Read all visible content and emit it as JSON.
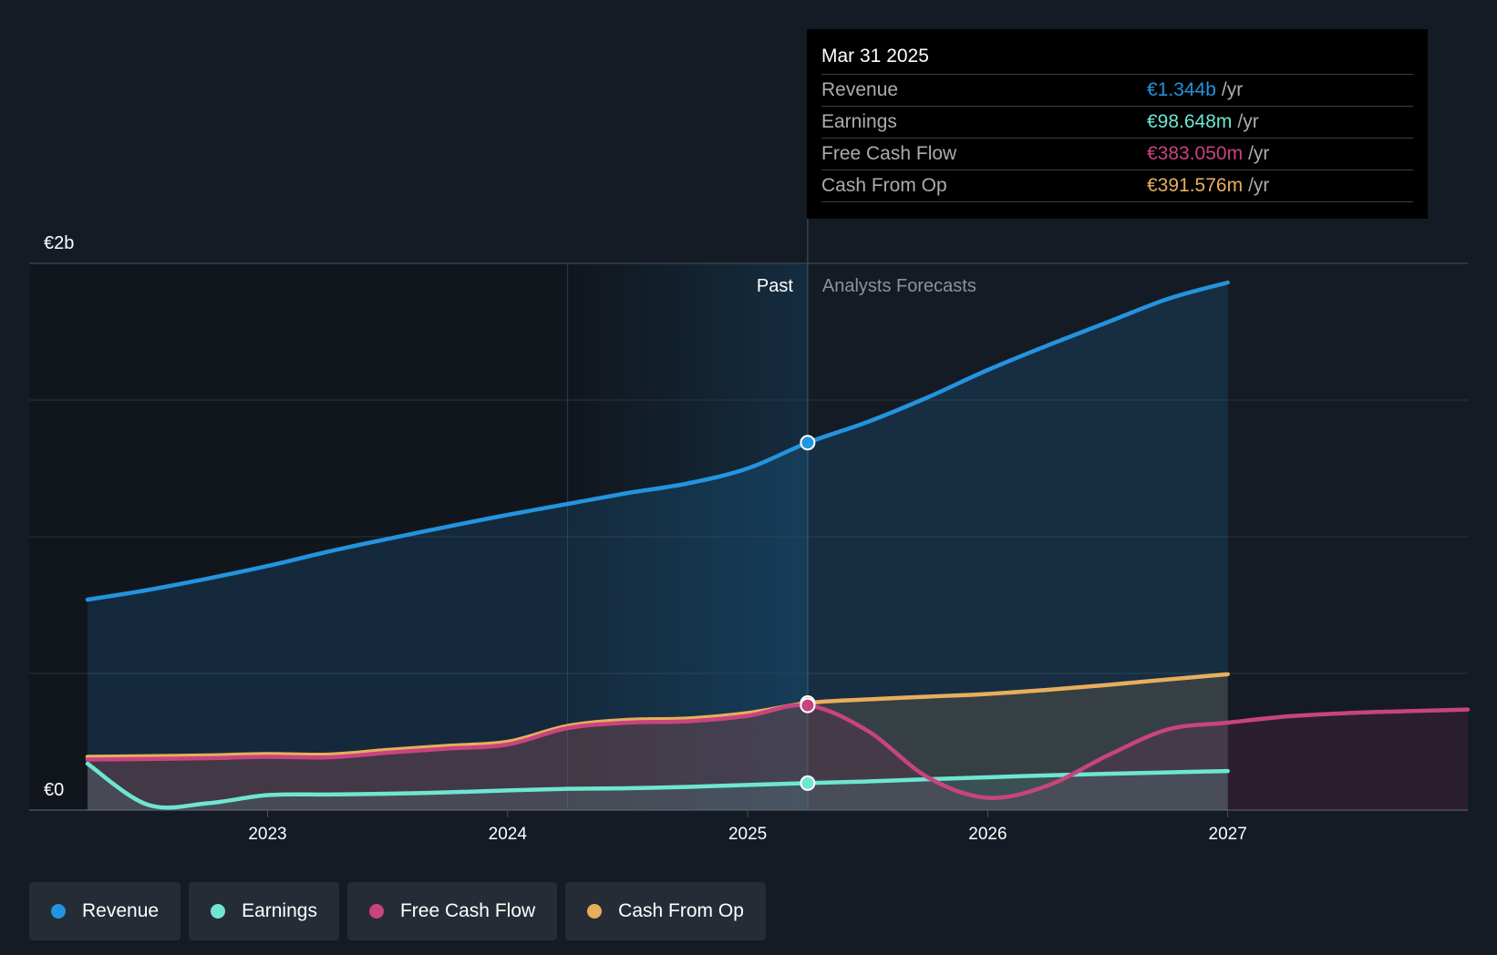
{
  "colors": {
    "background": "#151b24",
    "revenue": "#2394df",
    "earnings": "#6ee6d2",
    "free_cash_flow": "#c8447f",
    "cash_from_op": "#e8ae5c",
    "grid": "#2c333d"
  },
  "tooltip": {
    "date": "Mar 31 2025",
    "unit": "/yr",
    "rows": [
      {
        "name": "Revenue",
        "value": "€1.344b",
        "color": "#2394df"
      },
      {
        "name": "Earnings",
        "value": "€98.648m",
        "color": "#6ee6d2"
      },
      {
        "name": "Free Cash Flow",
        "value": "€383.050m",
        "color": "#c8447f"
      },
      {
        "name": "Cash From Op",
        "value": "€391.576m",
        "color": "#e8ae5c"
      }
    ]
  },
  "chart_data": {
    "type": "area",
    "ylabel_top": "€2b",
    "ylabel_bottom": "€0",
    "ylim": [
      0,
      2000
    ],
    "xlim": [
      2022.25,
      2028.0
    ],
    "x_ticks": [
      {
        "value": 2023,
        "label": "2023"
      },
      {
        "value": 2024,
        "label": "2024"
      },
      {
        "value": 2025,
        "label": "2025"
      },
      {
        "value": 2026,
        "label": "2026"
      },
      {
        "value": 2027,
        "label": "2027"
      }
    ],
    "past_label": "Past",
    "forecast_label": "Analysts Forecasts",
    "divider_x": 2025.25,
    "highlight_start_x": 2024.25,
    "grid": true,
    "legend_position": "bottom-left",
    "series": [
      {
        "name": "Revenue",
        "key": "revenue",
        "color": "#2394df",
        "points": [
          [
            2022.25,
            770
          ],
          [
            2022.5,
            805
          ],
          [
            2022.75,
            847
          ],
          [
            2023.0,
            893
          ],
          [
            2023.25,
            945
          ],
          [
            2023.5,
            992
          ],
          [
            2023.75,
            1037
          ],
          [
            2024.0,
            1080
          ],
          [
            2024.25,
            1120
          ],
          [
            2024.5,
            1160
          ],
          [
            2024.75,
            1195
          ],
          [
            2025.0,
            1250
          ],
          [
            2025.25,
            1344
          ],
          [
            2025.5,
            1420
          ],
          [
            2025.75,
            1510
          ],
          [
            2026.0,
            1610
          ],
          [
            2026.25,
            1700
          ],
          [
            2026.5,
            1785
          ],
          [
            2026.75,
            1870
          ],
          [
            2027.0,
            1930
          ]
        ]
      },
      {
        "name": "Earnings",
        "key": "earnings",
        "color": "#6ee6d2",
        "points": [
          [
            2022.25,
            170
          ],
          [
            2022.5,
            20
          ],
          [
            2022.75,
            25
          ],
          [
            2023.0,
            55
          ],
          [
            2023.25,
            57
          ],
          [
            2023.5,
            60
          ],
          [
            2023.75,
            65
          ],
          [
            2024.0,
            72
          ],
          [
            2024.25,
            78
          ],
          [
            2024.5,
            80
          ],
          [
            2024.75,
            85
          ],
          [
            2025.0,
            92
          ],
          [
            2025.25,
            98.6
          ],
          [
            2025.5,
            105
          ],
          [
            2025.75,
            113
          ],
          [
            2026.0,
            120
          ],
          [
            2026.25,
            127
          ],
          [
            2026.5,
            133
          ],
          [
            2026.75,
            138
          ],
          [
            2027.0,
            143
          ]
        ]
      },
      {
        "name": "Free Cash Flow",
        "key": "free_cash_flow",
        "color": "#c8447f",
        "points": [
          [
            2022.25,
            185
          ],
          [
            2022.5,
            187
          ],
          [
            2022.75,
            190
          ],
          [
            2023.0,
            195
          ],
          [
            2023.25,
            193
          ],
          [
            2023.5,
            210
          ],
          [
            2023.75,
            225
          ],
          [
            2024.0,
            240
          ],
          [
            2024.25,
            300
          ],
          [
            2024.5,
            320
          ],
          [
            2024.75,
            325
          ],
          [
            2025.0,
            345
          ],
          [
            2025.25,
            383
          ],
          [
            2025.5,
            290
          ],
          [
            2025.75,
            120
          ],
          [
            2026.0,
            45
          ],
          [
            2026.25,
            90
          ],
          [
            2026.5,
            200
          ],
          [
            2026.75,
            295
          ],
          [
            2027.0,
            320
          ],
          [
            2027.25,
            343
          ],
          [
            2027.5,
            355
          ],
          [
            2027.75,
            362
          ],
          [
            2028.0,
            368
          ]
        ]
      },
      {
        "name": "Cash From Op",
        "key": "cash_from_op",
        "color": "#e8ae5c",
        "points": [
          [
            2022.25,
            195
          ],
          [
            2022.5,
            197
          ],
          [
            2022.75,
            200
          ],
          [
            2023.0,
            205
          ],
          [
            2023.25,
            203
          ],
          [
            2023.5,
            220
          ],
          [
            2023.75,
            235
          ],
          [
            2024.0,
            250
          ],
          [
            2024.25,
            308
          ],
          [
            2024.5,
            330
          ],
          [
            2024.75,
            335
          ],
          [
            2025.0,
            355
          ],
          [
            2025.25,
            391.6
          ],
          [
            2025.5,
            405
          ],
          [
            2025.75,
            415
          ],
          [
            2026.0,
            425
          ],
          [
            2026.25,
            440
          ],
          [
            2026.5,
            458
          ],
          [
            2026.75,
            478
          ],
          [
            2027.0,
            497
          ]
        ]
      }
    ],
    "markers_at": 2025.25
  },
  "legend": [
    {
      "label": "Revenue",
      "color": "#2394df"
    },
    {
      "label": "Earnings",
      "color": "#6ee6d2"
    },
    {
      "label": "Free Cash Flow",
      "color": "#c8447f"
    },
    {
      "label": "Cash From Op",
      "color": "#e8ae5c"
    }
  ]
}
